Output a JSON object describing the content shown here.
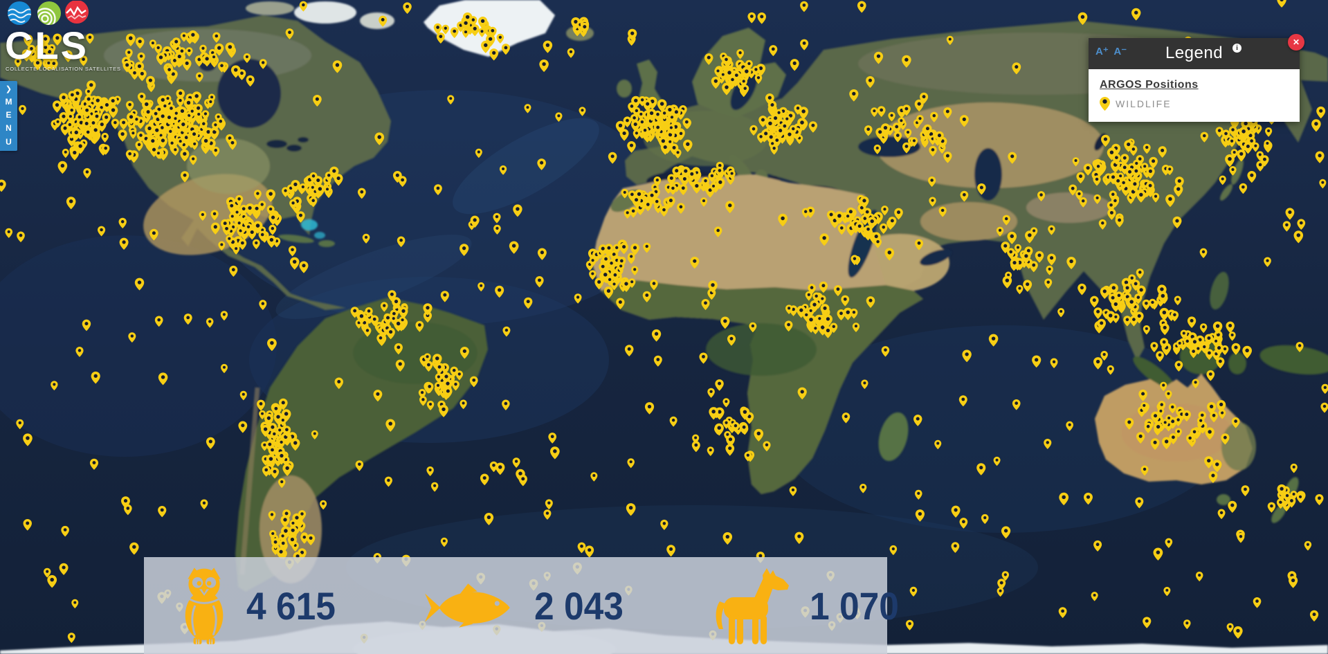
{
  "logo": {
    "title": "CLS",
    "subtitle": "COLLECTE LOCALISATION SATELLITES",
    "dots": [
      "waves-blue",
      "signal-green",
      "pulse-red"
    ],
    "dot_colors": {
      "waves": "#1789d4",
      "signal": "#8fc63e",
      "pulse": "#e8333f"
    }
  },
  "menu": {
    "label": "MENU",
    "chevron_glyph": "❯"
  },
  "legend": {
    "title": "Legend",
    "info_glyph": "i",
    "close_glyph": "✕",
    "font_increase": "A⁺",
    "font_decrease": "A⁻",
    "group_title": "ARGOS Positions",
    "items": [
      {
        "icon": "wildlife-pin",
        "label": "WILDLIFE"
      }
    ]
  },
  "stats": {
    "items": [
      {
        "icon": "owl",
        "value": "4 615"
      },
      {
        "icon": "fish",
        "value": "2 043"
      },
      {
        "icon": "horse",
        "value": "1 070"
      }
    ]
  },
  "map": {
    "type": "satellite-world-map",
    "marker_color": "#f7ce14",
    "marker_dot_color": "#161b29",
    "stat_icon_color": "#f9b112",
    "stat_value_color": "#1d3a6b",
    "accent_blue": "#2e86c6",
    "legend_header_color": "#333333",
    "close_button_color": "#e73744"
  }
}
